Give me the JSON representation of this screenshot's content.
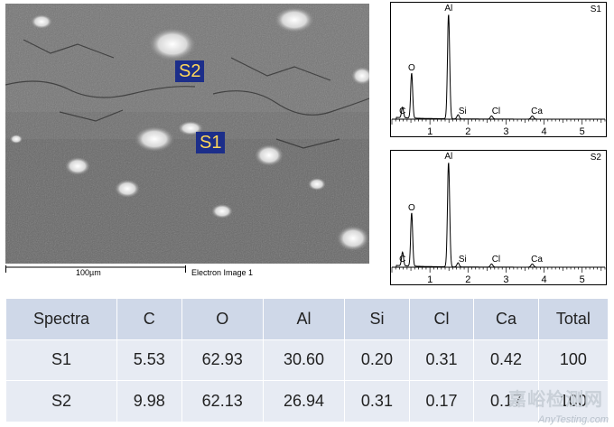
{
  "micrograph": {
    "labels": [
      "S2",
      "S1"
    ],
    "scale_text": "100µm",
    "caption": "Electron Image 1"
  },
  "spectra": [
    {
      "id": "S1",
      "peaks": [
        {
          "element": "C",
          "energy_kev": 0.28,
          "height": 0.1
        },
        {
          "element": "O",
          "energy_kev": 0.52,
          "height": 0.43
        },
        {
          "element": "Al",
          "energy_kev": 1.49,
          "height": 1.0
        },
        {
          "element": "Si",
          "energy_kev": 1.74,
          "height": 0.04
        },
        {
          "element": "Cl",
          "energy_kev": 2.62,
          "height": 0.03
        },
        {
          "element": "Ca",
          "energy_kev": 3.69,
          "height": 0.03
        }
      ],
      "ticks": [
        "1",
        "2",
        "3",
        "4",
        "5"
      ]
    },
    {
      "id": "S2",
      "peaks": [
        {
          "element": "C",
          "energy_kev": 0.28,
          "height": 0.13
        },
        {
          "element": "O",
          "energy_kev": 0.52,
          "height": 0.51
        },
        {
          "element": "Al",
          "energy_kev": 1.49,
          "height": 1.0
        },
        {
          "element": "Si",
          "energy_kev": 1.74,
          "height": 0.04
        },
        {
          "element": "Cl",
          "energy_kev": 2.62,
          "height": 0.03
        },
        {
          "element": "Ca",
          "energy_kev": 3.69,
          "height": 0.03
        }
      ],
      "ticks": [
        "1",
        "2",
        "3",
        "4",
        "5"
      ]
    }
  ],
  "table": {
    "headers": [
      "Spectra",
      "C",
      "O",
      "Al",
      "Si",
      "Cl",
      "Ca",
      "Total"
    ],
    "rows": [
      [
        "S1",
        "5.53",
        "62.93",
        "30.60",
        "0.20",
        "0.31",
        "0.42",
        "100"
      ],
      [
        "S2",
        "9.98",
        "62.13",
        "26.94",
        "0.31",
        "0.17",
        "0.17",
        "100"
      ]
    ]
  },
  "watermark": {
    "cn": "嘉峪检测网",
    "en": "AnyTesting.com"
  }
}
